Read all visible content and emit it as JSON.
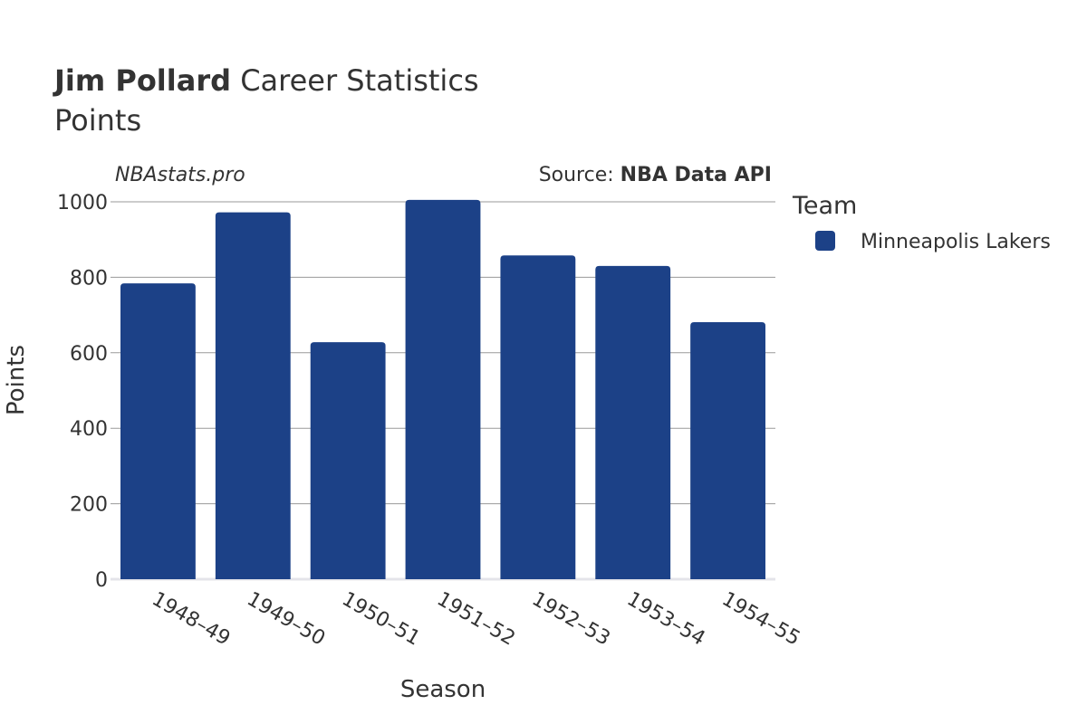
{
  "header": {
    "title_bold": "Jim Pollard",
    "title_rest": " Career Statistics",
    "subtitle": "Points"
  },
  "watermark": "NBAstats.pro",
  "source": {
    "prefix": "Source: ",
    "name": "NBA Data API"
  },
  "legend": {
    "title": "Team",
    "items": [
      {
        "label": "Minneapolis Lakers",
        "color": "#1c4187"
      }
    ]
  },
  "chart_data": {
    "type": "bar",
    "categories": [
      "1948–49",
      "1949–50",
      "1950–51",
      "1951–52",
      "1952–53",
      "1953–54",
      "1954–55"
    ],
    "series": [
      {
        "name": "Minneapolis Lakers",
        "values": [
          784,
          972,
          628,
          1005,
          858,
          830,
          681
        ]
      }
    ],
    "xlabel": "Season",
    "ylabel": "Points",
    "ylim": [
      0,
      1000
    ],
    "yticks": [
      0,
      200,
      400,
      600,
      800,
      1000
    ],
    "grid": true,
    "legend_position": "right",
    "bar_color": "#1c4187"
  }
}
